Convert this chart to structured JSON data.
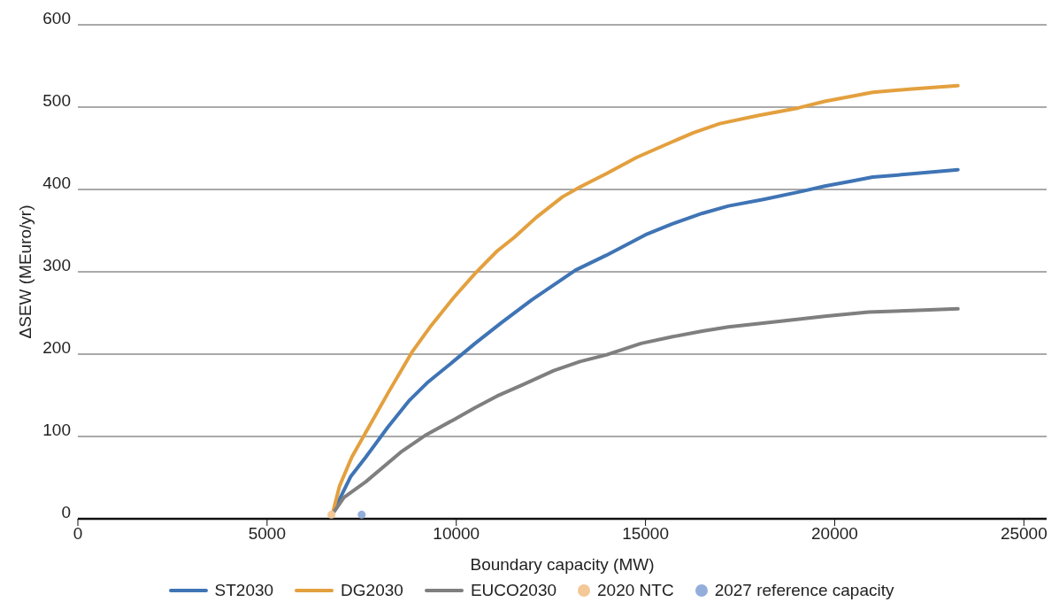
{
  "chart_data": {
    "type": "line",
    "xlabel": "Boundary capacity (MW)",
    "ylabel": "ΔSEW (MEuro/yr)",
    "xlim": [
      0,
      25600
    ],
    "ylim": [
      0,
      600
    ],
    "xticks": [
      0,
      5000,
      10000,
      15000,
      20000,
      25000
    ],
    "yticks": [
      0,
      100,
      200,
      300,
      400,
      500,
      600
    ],
    "grid": "y",
    "legend": "bottom",
    "marker": "none",
    "line_style": "solid",
    "series": [
      {
        "name": "ST2030",
        "color": "#3f74b5",
        "x": [
          6778,
          7206,
          7610,
          8187,
          8764,
          9226,
          9919,
          10497,
          11189,
          11998,
          12575,
          13152,
          13961,
          15000,
          15693,
          16501,
          17194,
          18118,
          19157,
          19734,
          20427,
          21004,
          22043,
          23256
        ],
        "values": [
          11,
          51,
          75,
          111,
          144,
          165,
          191,
          213,
          238,
          266,
          284,
          302,
          320,
          345,
          358,
          371,
          380,
          388,
          398,
          404,
          410,
          415,
          419,
          424
        ]
      },
      {
        "name": "DG2030",
        "color": "#e3a03e",
        "x": [
          6744,
          6917,
          7240,
          7610,
          8187,
          8822,
          9342,
          9919,
          10497,
          11074,
          11536,
          12113,
          12806,
          13268,
          13961,
          14769,
          15462,
          16270,
          16963,
          18002,
          19041,
          19734,
          20542,
          21004,
          22043,
          23256
        ],
        "values": [
          9,
          40,
          75,
          105,
          152,
          202,
          235,
          268,
          298,
          325,
          342,
          366,
          391,
          403,
          419,
          439,
          453,
          469,
          480,
          490,
          499,
          507,
          514,
          518,
          522,
          526
        ]
      },
      {
        "name": "EUCO2030",
        "color": "#7f7f7f",
        "x": [
          6778,
          7032,
          7610,
          8534,
          9169,
          9919,
          10497,
          11074,
          11767,
          12575,
          13268,
          13961,
          14885,
          15693,
          16501,
          17194,
          18580,
          19734,
          20889,
          22043,
          23256
        ],
        "values": [
          9,
          26,
          45,
          81,
          101,
          120,
          135,
          149,
          163,
          180,
          191,
          199,
          213,
          221,
          228,
          233,
          240,
          246,
          251,
          253,
          255
        ]
      },
      {
        "name": "2020 NTC",
        "type": "scatter",
        "marker": "circle",
        "color": "#f3c896",
        "x": [
          6700
        ],
        "values": [
          5
        ]
      },
      {
        "name": "2027 reference capacity",
        "type": "scatter",
        "marker": "circle",
        "color": "#94aedb",
        "x": [
          7500
        ],
        "values": [
          5
        ]
      }
    ]
  }
}
